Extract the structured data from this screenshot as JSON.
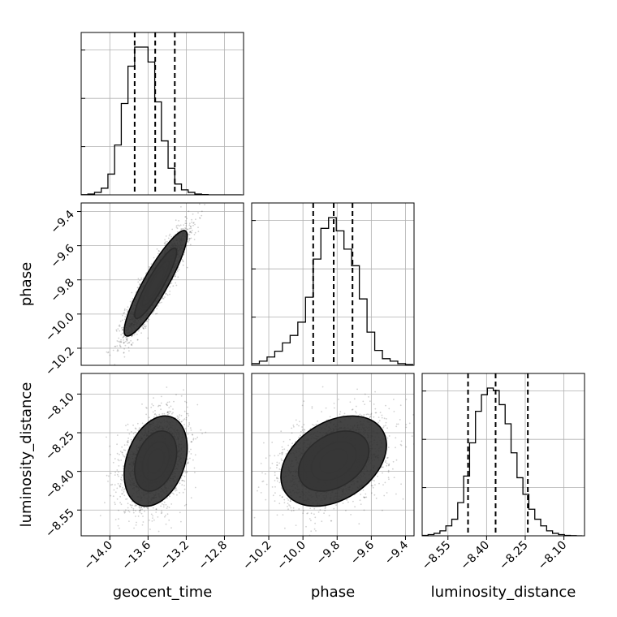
{
  "chart_data": {
    "type": "corner",
    "parameters": [
      "geocent_time",
      "phase",
      "luminosity_distance"
    ],
    "axes": {
      "geocent_time": {
        "label": "geocent_time",
        "range": [
          -14.3,
          -12.6
        ],
        "ticks": [
          -14.0,
          -13.6,
          -13.2,
          -12.8
        ],
        "tick_labels": [
          "−14.0",
          "−13.6",
          "−13.2",
          "−12.8"
        ]
      },
      "phase": {
        "label": "phase",
        "range": [
          -10.3,
          -9.35
        ],
        "ticks": [
          -10.2,
          -10.0,
          -9.8,
          -9.6,
          -9.4
        ],
        "tick_labels": [
          "−10.2",
          "−10.0",
          "−9.8",
          "−9.6",
          "−9.4"
        ]
      },
      "luminosity_distance": {
        "label": "luminosity_distance",
        "range": [
          -8.65,
          -8.02
        ],
        "ticks": [
          -8.55,
          -8.4,
          -8.25,
          -8.1
        ],
        "tick_labels": [
          "−8.55",
          "−8.40",
          "−8.25",
          "−8.10"
        ]
      }
    },
    "histograms": {
      "geocent_time": {
        "bin_edges": [
          -14.3,
          -14.23,
          -14.16,
          -14.09,
          -14.02,
          -13.95,
          -13.88,
          -13.81,
          -13.74,
          -13.67,
          -13.6,
          -13.53,
          -13.46,
          -13.39,
          -13.32,
          -13.25,
          -13.18,
          -13.11,
          -13.04,
          -12.97,
          -12.9,
          -12.83,
          -12.76,
          -12.69,
          -12.62
        ],
        "counts": [
          0.2,
          1,
          3,
          8,
          25,
          60,
          110,
          155,
          178,
          178,
          160,
          112,
          65,
          32,
          13,
          6,
          3,
          1,
          0.3,
          0,
          0,
          0,
          0,
          0
        ],
        "quantiles": [
          -13.74,
          -13.525,
          -13.32
        ]
      },
      "phase": {
        "bin_edges": [
          -10.3,
          -10.255,
          -10.21,
          -10.165,
          -10.12,
          -10.075,
          -10.03,
          -9.985,
          -9.94,
          -9.895,
          -9.85,
          -9.805,
          -9.76,
          -9.715,
          -9.67,
          -9.625,
          -9.58,
          -9.535,
          -9.49,
          -9.445,
          -9.4,
          -9.355
        ],
        "counts": [
          2,
          5,
          10,
          17,
          27,
          36,
          52,
          82,
          128,
          165,
          178,
          162,
          140,
          120,
          80,
          40,
          18,
          8,
          5,
          2,
          1
        ],
        "quantiles": [
          -9.94,
          -9.82,
          -9.71
        ]
      },
      "luminosity_distance": {
        "bin_edges": [
          -8.65,
          -8.627,
          -8.604,
          -8.581,
          -8.558,
          -8.535,
          -8.512,
          -8.489,
          -8.466,
          -8.443,
          -8.42,
          -8.397,
          -8.374,
          -8.351,
          -8.328,
          -8.305,
          -8.282,
          -8.259,
          -8.236,
          -8.213,
          -8.19,
          -8.167,
          -8.144,
          -8.121,
          -8.098,
          -8.075,
          -8.052,
          -8.029
        ],
        "counts": [
          0.5,
          1.5,
          3,
          6,
          12,
          20,
          40,
          72,
          112,
          150,
          170,
          178,
          175,
          158,
          135,
          100,
          70,
          50,
          32,
          20,
          12,
          6,
          3,
          1.5,
          0.5,
          0.2,
          0
        ],
        "quantiles": [
          -8.472,
          -8.365,
          -8.24
        ]
      }
    },
    "pairs": [
      {
        "x": "geocent_time",
        "y": "phase",
        "mean": [
          -13.52,
          -9.82
        ],
        "sd": [
          0.16,
          0.15
        ],
        "corr": 0.9,
        "contours": [
          0.12,
          0.39,
          0.68,
          0.86
        ]
      },
      {
        "x": "geocent_time",
        "y": "luminosity_distance",
        "mean": [
          -13.52,
          -8.36
        ],
        "sd": [
          0.16,
          0.085
        ],
        "corr": 0.3,
        "contours": [
          0.12,
          0.39,
          0.68,
          0.86
        ]
      },
      {
        "x": "phase",
        "y": "luminosity_distance",
        "mean": [
          -9.82,
          -8.36
        ],
        "sd": [
          0.15,
          0.085
        ],
        "corr": 0.35,
        "contours": [
          0.12,
          0.39,
          0.68,
          0.86
        ]
      }
    ],
    "grid": true
  }
}
